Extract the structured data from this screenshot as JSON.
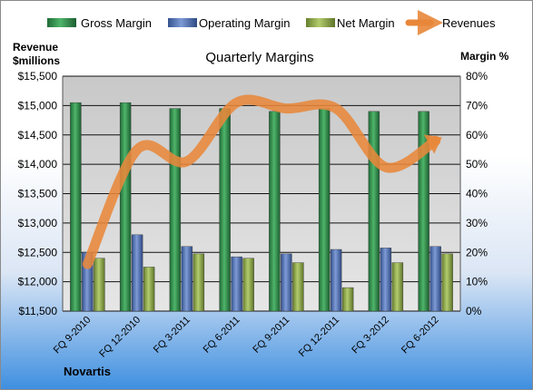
{
  "chart_data": {
    "type": "bar",
    "title": "Quarterly Margins",
    "company": "Novartis",
    "y_left_label_line1": "Revenue",
    "y_left_label_line2": "$millions",
    "y_right_label": "Margin %",
    "categories": [
      "FQ 9-2010",
      "FQ 12-2010",
      "FQ 3-2011",
      "FQ 6-2011",
      "FQ 9-2011",
      "FQ 12-2011",
      "FQ 3-2012",
      "FQ 6-2012"
    ],
    "left_axis": {
      "min": 11500,
      "max": 15500,
      "step": 500,
      "ticks": [
        "$11,500",
        "$12,000",
        "$12,500",
        "$13,000",
        "$13,500",
        "$14,000",
        "$14,500",
        "$15,000",
        "$15,500"
      ]
    },
    "right_axis": {
      "min": 0,
      "max": 80,
      "step": 10,
      "ticks": [
        "0%",
        "10%",
        "20%",
        "30%",
        "40%",
        "50%",
        "60%",
        "70%",
        "80%"
      ]
    },
    "series": [
      {
        "name": "Gross Margin",
        "kind": "bar",
        "axis": "right",
        "color": "#2e8b4a",
        "values": [
          71,
          71,
          69,
          69,
          68,
          69,
          68,
          68
        ]
      },
      {
        "name": "Operating Margin",
        "kind": "bar",
        "axis": "right",
        "color": "#4f6fb0",
        "values": [
          20,
          26,
          22,
          18.5,
          19.5,
          21,
          21.5,
          22
        ]
      },
      {
        "name": "Net Margin",
        "kind": "bar",
        "axis": "right",
        "color": "#8aa64a",
        "values": [
          18,
          15,
          19.5,
          18,
          16.5,
          8,
          16.5,
          19.5
        ]
      },
      {
        "name": "Revenues",
        "kind": "line",
        "axis": "left",
        "color": "#e8873a",
        "values": [
          12300,
          14250,
          14050,
          15050,
          14950,
          14950,
          13950,
          14400
        ]
      }
    ],
    "legend_position": "top",
    "grid": true
  }
}
